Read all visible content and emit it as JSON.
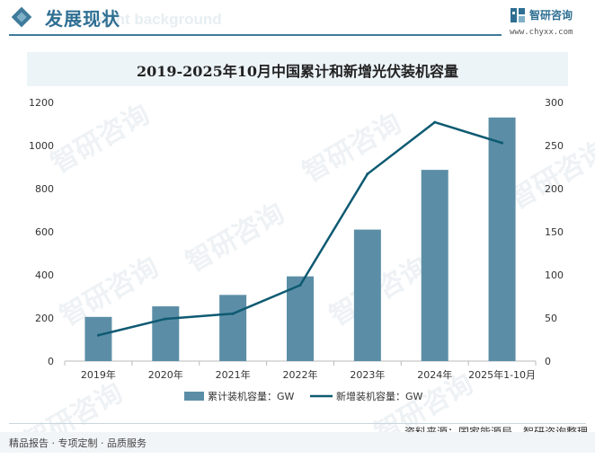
{
  "header": {
    "section_title": "发展现状",
    "ghost_text": "ment background",
    "brand_name": "智研咨询",
    "brand_url": "www.chyxx.com",
    "brand_logo_icon": "zhiyan-logo-icon"
  },
  "watermark": "智研咨询",
  "footer": {
    "source": "资料来源：国家能源局、智研咨询整理",
    "services": "精品报告 · 专项定制 · 品质服务"
  },
  "colors": {
    "bar": "#5b8ea6",
    "line": "#0e5a72",
    "accent": "#2f6f93"
  },
  "chart_data": {
    "type": "bar+line",
    "title": "2019-2025年10月中国累计和新增光伏装机容量",
    "categories": [
      "2019年",
      "2020年",
      "2021年",
      "2022年",
      "2023年",
      "2024年",
      "2025年1-10月"
    ],
    "series": [
      {
        "name": "累计装机容量：GW",
        "type": "bar",
        "axis": "left",
        "values": [
          205,
          254,
          307,
          393,
          610,
          887,
          1130
        ]
      },
      {
        "name": "新增装机容量：GW",
        "type": "line",
        "axis": "right",
        "values": [
          30,
          49,
          55,
          88,
          217,
          277,
          253
        ]
      }
    ],
    "y_left": {
      "ylim": [
        0,
        1200
      ],
      "ticks": [
        0,
        200,
        400,
        600,
        800,
        1000,
        1200
      ]
    },
    "y_right": {
      "ylim": [
        0,
        300
      ],
      "ticks": [
        0,
        50,
        100,
        150,
        200,
        250,
        300
      ]
    },
    "legend_position": "bottom",
    "grid": false
  }
}
